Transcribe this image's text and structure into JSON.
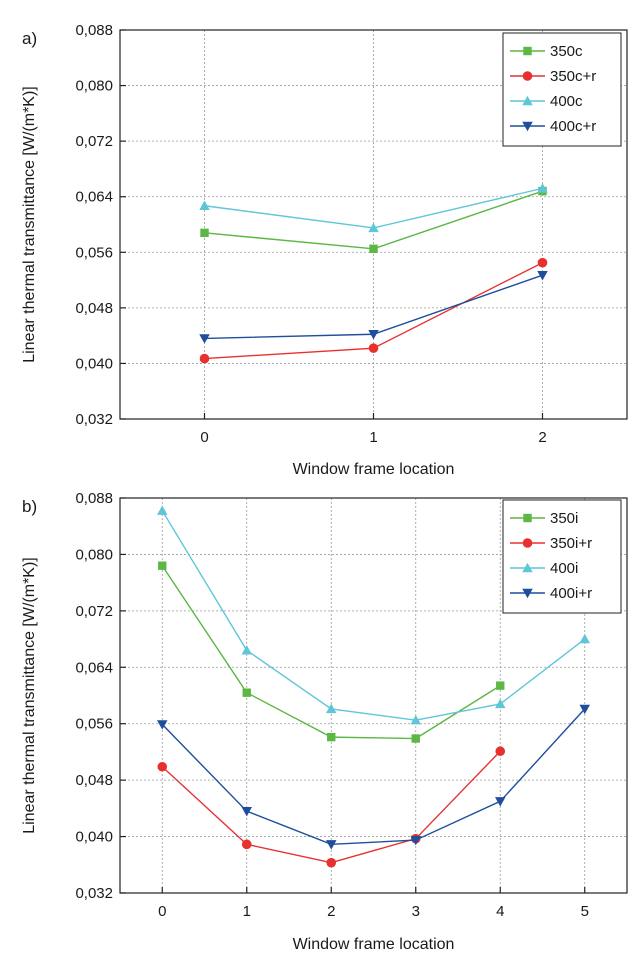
{
  "chart_data": [
    {
      "type": "line",
      "panel_label": "a)",
      "xlabel": "Window frame location",
      "ylabel": "Linear thermal transmittance [W/(m*K)]",
      "x": [
        0,
        1,
        2
      ],
      "xlim": [
        -0.5,
        2.5
      ],
      "ylim": [
        0.032,
        0.088
      ],
      "yticks": [
        "0,032",
        "0,040",
        "0,048",
        "0,056",
        "0,064",
        "0,072",
        "0,080",
        "0,088"
      ],
      "xticks": [
        "0",
        "1",
        "2"
      ],
      "grid": true,
      "legend_position": "top-right",
      "series": [
        {
          "name": "350c",
          "values": [
            0.0588,
            0.0565,
            0.0648
          ],
          "color": "#5cb744",
          "marker": "square"
        },
        {
          "name": "350c+r",
          "values": [
            0.0407,
            0.0422,
            0.0545
          ],
          "color": "#e8312f",
          "marker": "circle"
        },
        {
          "name": "400c",
          "values": [
            0.0627,
            0.0595,
            0.0652
          ],
          "color": "#5fc6d8",
          "marker": "triangle-up"
        },
        {
          "name": "400c+r",
          "values": [
            0.0436,
            0.0442,
            0.0527
          ],
          "color": "#1f4f9c",
          "marker": "triangle-down"
        }
      ]
    },
    {
      "type": "line",
      "panel_label": "b)",
      "xlabel": "Window frame location",
      "ylabel": "Linear thermal transmittance [W/(m*K)]",
      "x": [
        0,
        1,
        2,
        3,
        4,
        5
      ],
      "xlim": [
        -0.5,
        5.5
      ],
      "ylim": [
        0.032,
        0.088
      ],
      "yticks": [
        "0,032",
        "0,040",
        "0,048",
        "0,056",
        "0,064",
        "0,072",
        "0,080",
        "0,088"
      ],
      "xticks": [
        "0",
        "1",
        "2",
        "3",
        "4",
        "5"
      ],
      "grid": true,
      "legend_position": "top-right",
      "series": [
        {
          "name": "350i",
          "x": [
            0,
            1,
            2,
            3,
            4
          ],
          "values": [
            0.0784,
            0.0604,
            0.0541,
            0.0539,
            0.0614
          ],
          "color": "#5cb744",
          "marker": "square"
        },
        {
          "name": "350i+r",
          "x": [
            0,
            1,
            2,
            3,
            4
          ],
          "values": [
            0.0499,
            0.0389,
            0.0363,
            0.0397,
            0.0521
          ],
          "color": "#e8312f",
          "marker": "circle"
        },
        {
          "name": "400i",
          "x": [
            0,
            1,
            2,
            3,
            4,
            5
          ],
          "values": [
            0.0862,
            0.0664,
            0.0581,
            0.0565,
            0.0588,
            0.068
          ],
          "color": "#5fc6d8",
          "marker": "triangle-up"
        },
        {
          "name": "400i+r",
          "x": [
            0,
            1,
            2,
            3,
            4,
            5
          ],
          "values": [
            0.0559,
            0.0436,
            0.0389,
            0.0395,
            0.045,
            0.0581
          ],
          "color": "#1f4f9c",
          "marker": "triangle-down"
        }
      ]
    }
  ]
}
